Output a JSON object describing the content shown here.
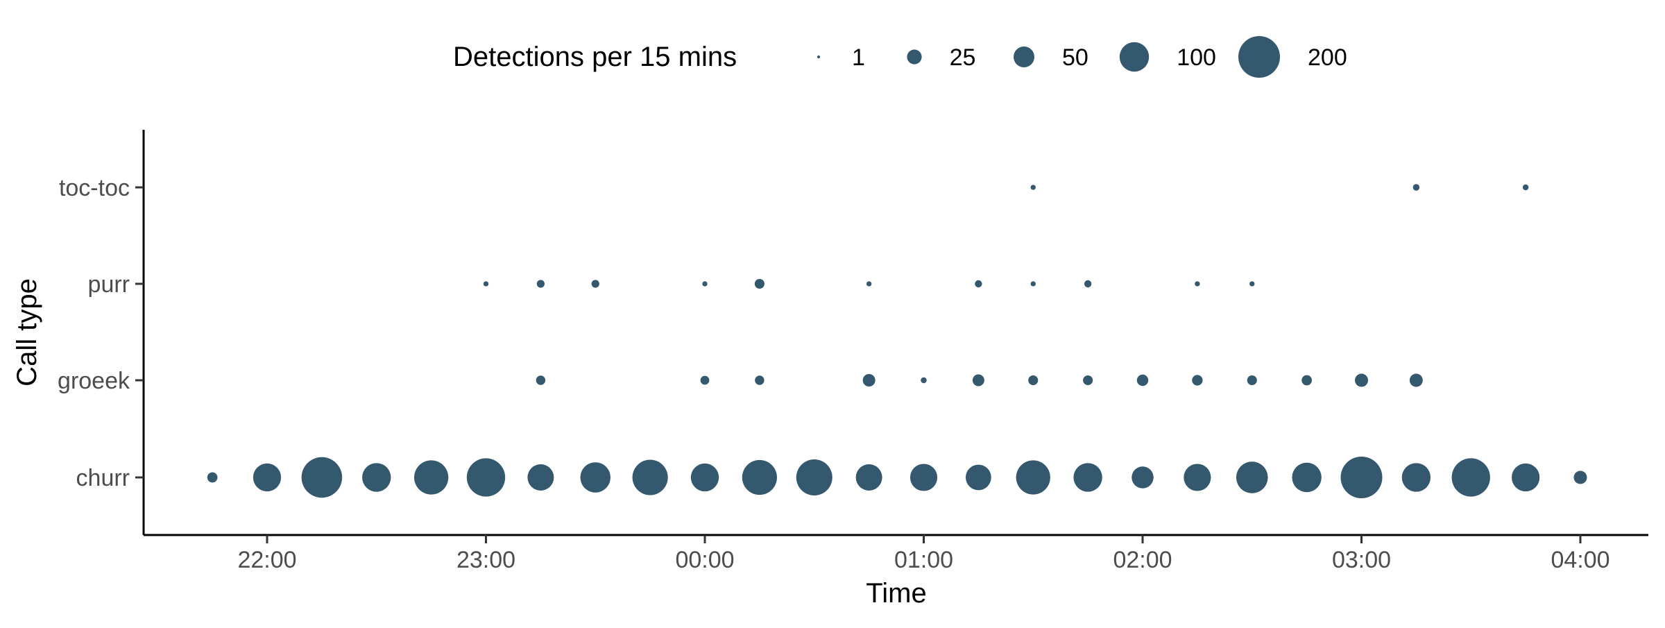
{
  "chart_data": {
    "type": "scatter",
    "title": "",
    "xlabel": "Time",
    "ylabel": "Call type",
    "x_ticks": [
      "22:00",
      "23:00",
      "00:00",
      "01:00",
      "02:00",
      "03:00",
      "04:00"
    ],
    "y_categories": [
      "churr",
      "groeek",
      "purr",
      "toc-toc"
    ],
    "legend": {
      "title": "Detections per 15 mins",
      "position": "top",
      "entries": [
        {
          "label": "1",
          "value": 1
        },
        {
          "label": "25",
          "value": 25
        },
        {
          "label": "50",
          "value": 50
        },
        {
          "label": "100",
          "value": 100
        },
        {
          "label": "200",
          "value": 200
        }
      ]
    },
    "grid": false,
    "point_color": "#34586e",
    "size_encoding": "area proportional to detections per 15 mins",
    "series": [
      {
        "name": "churr",
        "points": [
          {
            "x": "21:45",
            "detections": 12
          },
          {
            "x": "22:00",
            "detections": 90
          },
          {
            "x": "22:15",
            "detections": 190
          },
          {
            "x": "22:30",
            "detections": 95
          },
          {
            "x": "22:45",
            "detections": 135
          },
          {
            "x": "23:00",
            "detections": 170
          },
          {
            "x": "23:15",
            "detections": 80
          },
          {
            "x": "23:30",
            "detections": 105
          },
          {
            "x": "23:45",
            "detections": 145
          },
          {
            "x": "00:00",
            "detections": 90
          },
          {
            "x": "00:15",
            "detections": 140
          },
          {
            "x": "00:30",
            "detections": 150
          },
          {
            "x": "00:45",
            "detections": 80
          },
          {
            "x": "01:00",
            "detections": 85
          },
          {
            "x": "01:15",
            "detections": 75
          },
          {
            "x": "01:30",
            "detections": 135
          },
          {
            "x": "01:45",
            "detections": 95
          },
          {
            "x": "02:00",
            "detections": 55
          },
          {
            "x": "02:15",
            "detections": 85
          },
          {
            "x": "02:30",
            "detections": 115
          },
          {
            "x": "02:45",
            "detections": 100
          },
          {
            "x": "03:00",
            "detections": 200
          },
          {
            "x": "03:15",
            "detections": 95
          },
          {
            "x": "03:30",
            "detections": 170
          },
          {
            "x": "03:45",
            "detections": 90
          },
          {
            "x": "04:00",
            "detections": 20
          }
        ]
      },
      {
        "name": "groeek",
        "points": [
          {
            "x": "23:15",
            "detections": 10
          },
          {
            "x": "00:00",
            "detections": 9
          },
          {
            "x": "00:15",
            "detections": 10
          },
          {
            "x": "00:45",
            "detections": 18
          },
          {
            "x": "01:00",
            "detections": 4
          },
          {
            "x": "01:15",
            "detections": 16
          },
          {
            "x": "01:30",
            "detections": 11
          },
          {
            "x": "01:45",
            "detections": 11
          },
          {
            "x": "02:00",
            "detections": 15
          },
          {
            "x": "02:15",
            "detections": 13
          },
          {
            "x": "02:30",
            "detections": 11
          },
          {
            "x": "02:45",
            "detections": 12
          },
          {
            "x": "03:00",
            "detections": 20
          },
          {
            "x": "03:15",
            "detections": 20
          }
        ]
      },
      {
        "name": "purr",
        "points": [
          {
            "x": "23:00",
            "detections": 3
          },
          {
            "x": "23:15",
            "detections": 7
          },
          {
            "x": "23:30",
            "detections": 7
          },
          {
            "x": "00:00",
            "detections": 3
          },
          {
            "x": "00:15",
            "detections": 11
          },
          {
            "x": "00:45",
            "detections": 3
          },
          {
            "x": "01:15",
            "detections": 6
          },
          {
            "x": "01:30",
            "detections": 3
          },
          {
            "x": "01:45",
            "detections": 6
          },
          {
            "x": "02:15",
            "detections": 3
          },
          {
            "x": "02:30",
            "detections": 3
          }
        ]
      },
      {
        "name": "toc-toc",
        "points": [
          {
            "x": "01:30",
            "detections": 3
          },
          {
            "x": "03:15",
            "detections": 5
          },
          {
            "x": "03:45",
            "detections": 4
          }
        ]
      }
    ]
  }
}
